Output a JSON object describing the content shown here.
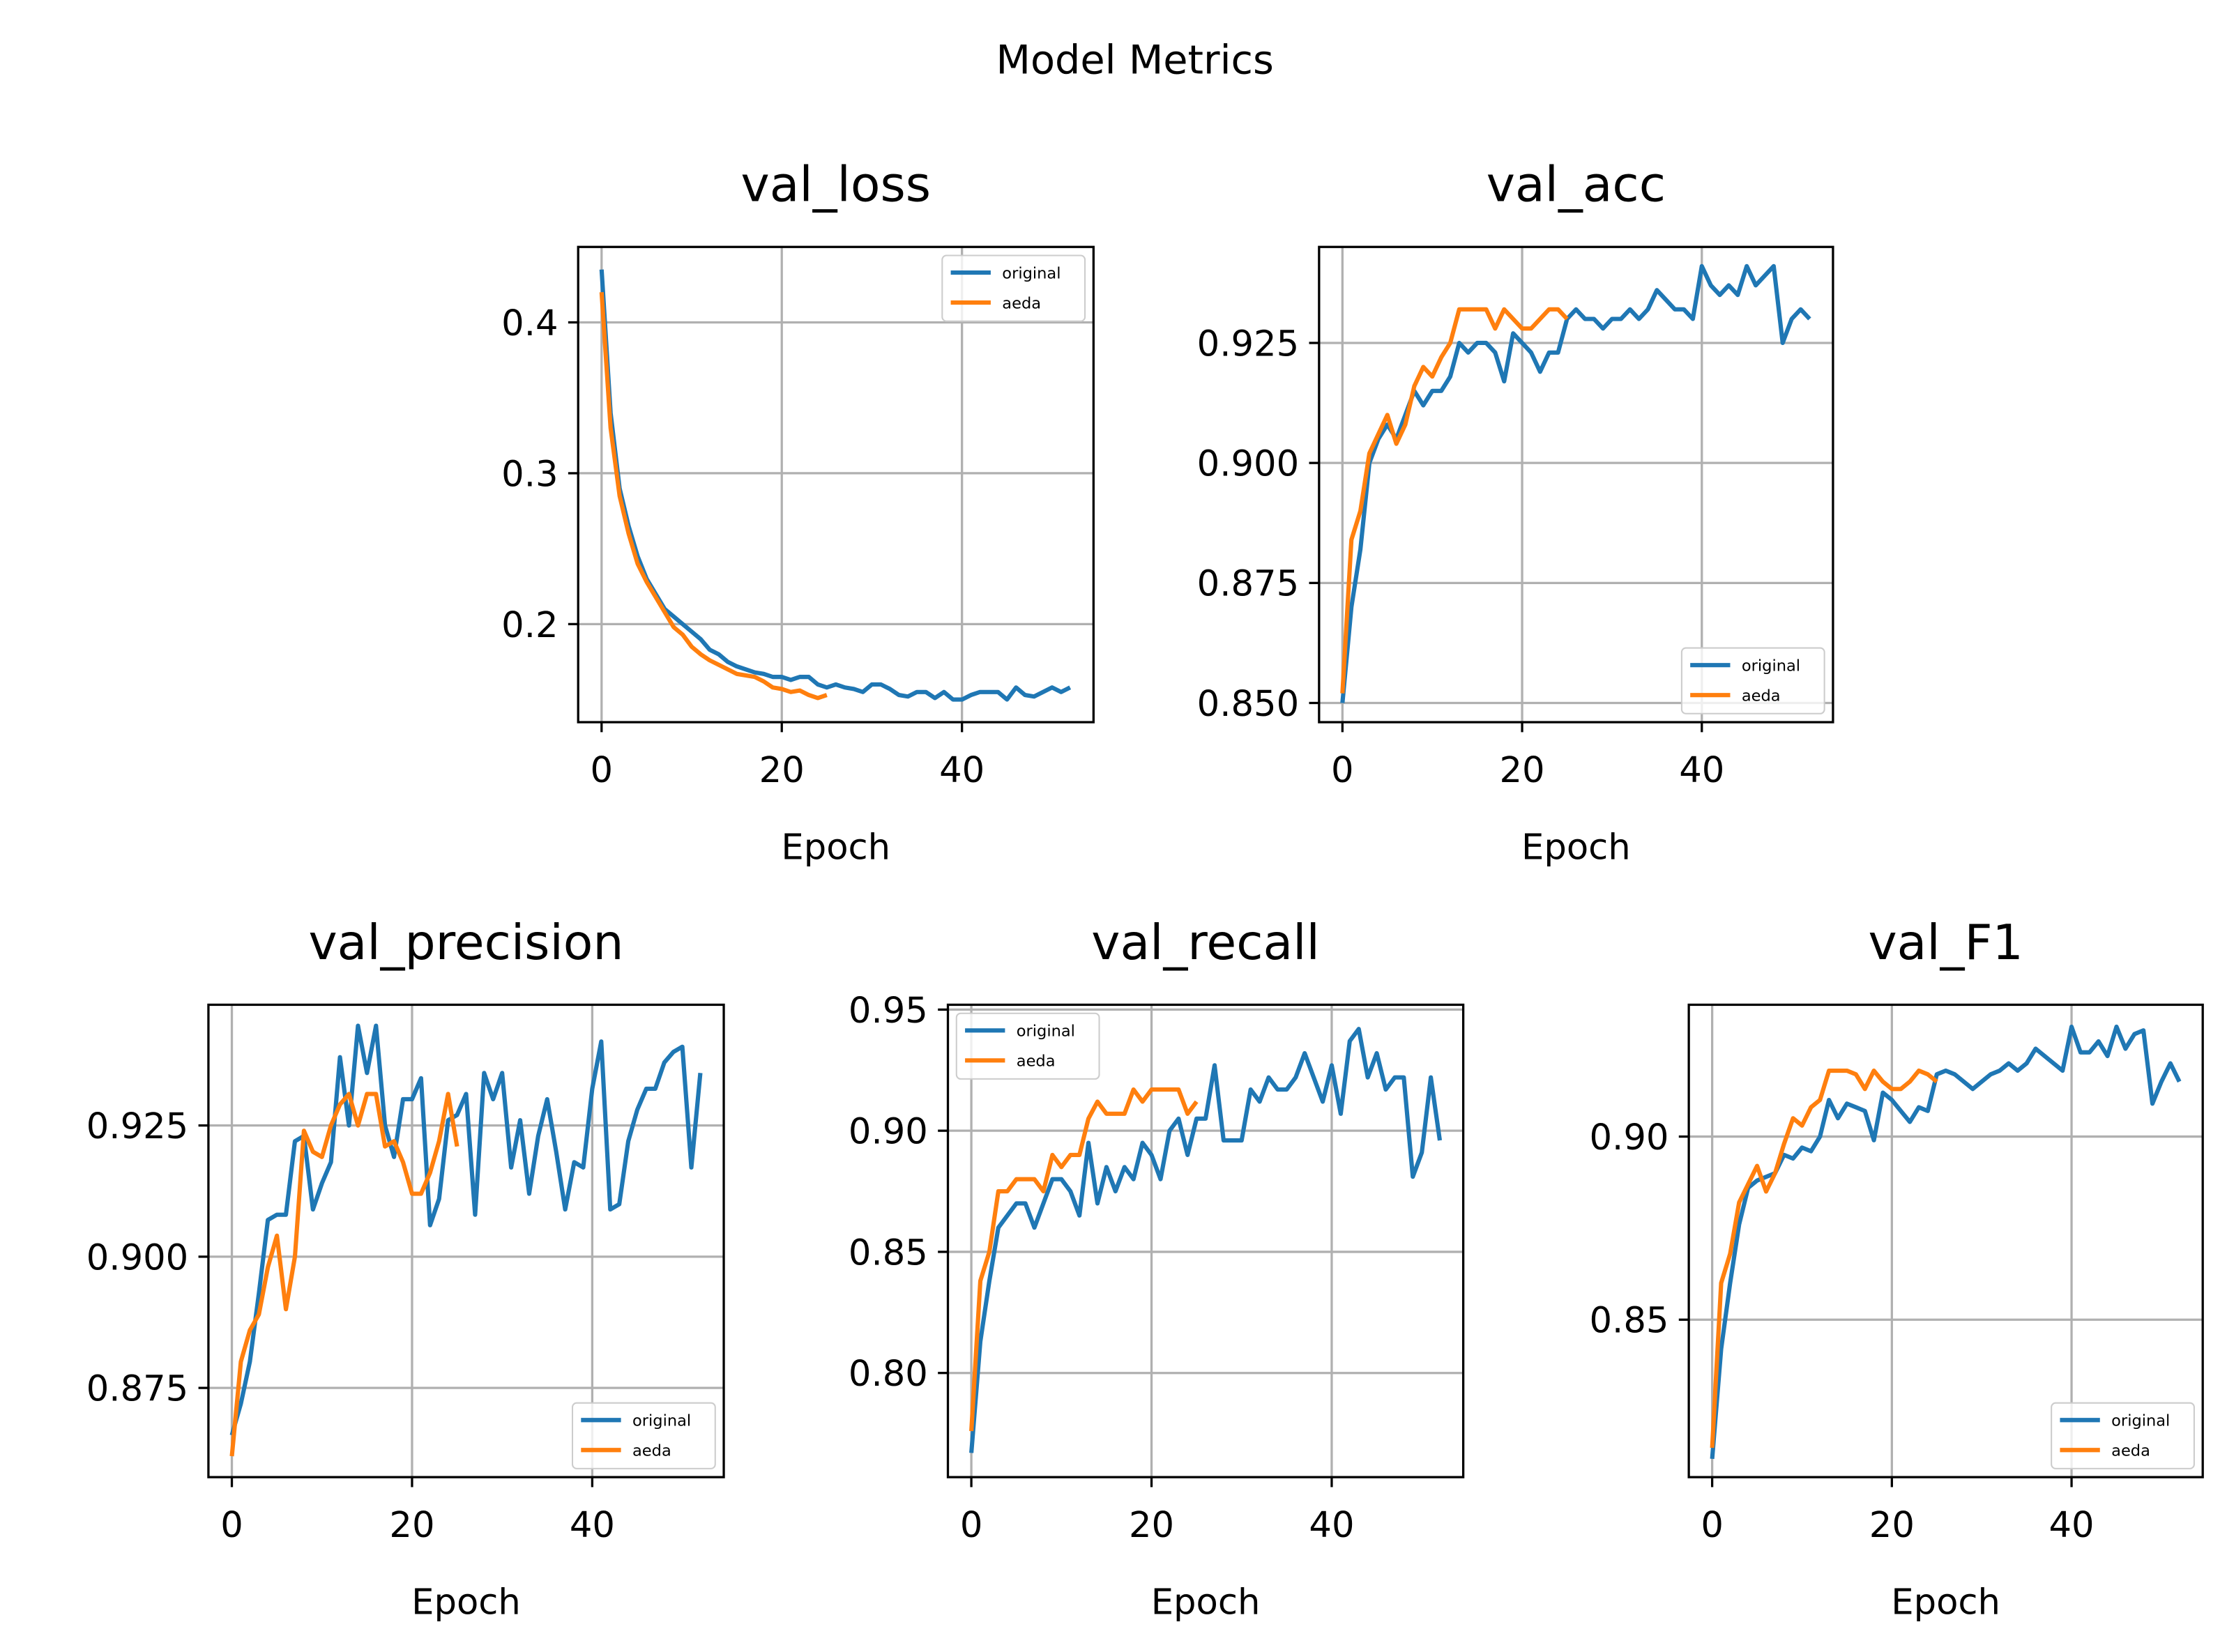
{
  "title": "Model Metrics",
  "chart_data": [
    {
      "type": "line",
      "title": "val_loss",
      "x_label": "Epoch",
      "legend": "upper right",
      "grid": true,
      "xlim": [
        -2.6,
        54.6
      ],
      "xticks": [
        0,
        20,
        40
      ],
      "ylim": [
        0.135,
        0.45
      ],
      "yticks": [
        0.2,
        0.3,
        0.4
      ],
      "series": [
        {
          "name": "original",
          "color": "#1f77b4",
          "x": [
            0,
            1,
            2,
            3,
            4,
            5,
            6,
            7,
            8,
            9,
            10,
            11,
            12,
            13,
            14,
            15,
            16,
            17,
            18,
            19,
            20,
            21,
            22,
            23,
            24,
            25,
            26,
            27,
            28,
            29,
            30,
            31,
            32,
            33,
            34,
            35,
            36,
            37,
            38,
            39,
            40,
            41,
            42,
            43,
            44,
            45,
            46,
            47,
            48,
            49,
            50,
            51,
            52
          ],
          "values": [
            0.435,
            0.34,
            0.29,
            0.265,
            0.245,
            0.23,
            0.22,
            0.21,
            0.205,
            0.2,
            0.195,
            0.19,
            0.183,
            0.18,
            0.175,
            0.172,
            0.17,
            0.168,
            0.167,
            0.165,
            0.165,
            0.163,
            0.165,
            0.165,
            0.16,
            0.158,
            0.16,
            0.158,
            0.157,
            0.155,
            0.16,
            0.16,
            0.157,
            0.153,
            0.152,
            0.155,
            0.155,
            0.151,
            0.155,
            0.15,
            0.15,
            0.153,
            0.155,
            0.155,
            0.155,
            0.15,
            0.158,
            0.153,
            0.152,
            0.155,
            0.158,
            0.155,
            0.158
          ]
        },
        {
          "name": "aeda",
          "color": "#ff7f0e",
          "x": [
            0,
            1,
            2,
            3,
            4,
            5,
            6,
            7,
            8,
            9,
            10,
            11,
            12,
            13,
            14,
            15,
            16,
            17,
            18,
            19,
            20,
            21,
            22,
            23,
            24,
            25
          ],
          "values": [
            0.42,
            0.33,
            0.285,
            0.26,
            0.24,
            0.228,
            0.218,
            0.208,
            0.198,
            0.193,
            0.185,
            0.18,
            0.176,
            0.173,
            0.17,
            0.167,
            0.166,
            0.165,
            0.162,
            0.158,
            0.157,
            0.155,
            0.156,
            0.153,
            0.151,
            0.153
          ]
        }
      ]
    },
    {
      "type": "line",
      "title": "val_acc",
      "x_label": "Epoch",
      "legend": "lower right",
      "grid": true,
      "xlim": [
        -2.6,
        54.6
      ],
      "xticks": [
        0,
        20,
        40
      ],
      "ylim": [
        0.846,
        0.945
      ],
      "yticks": [
        {
          "value": 0.85,
          "label": "0.850"
        },
        {
          "value": 0.875,
          "label": "0.875"
        },
        {
          "value": 0.9,
          "label": "0.900"
        },
        {
          "value": 0.925,
          "label": "0.925"
        }
      ],
      "series": [
        {
          "name": "original",
          "color": "#1f77b4",
          "x": [
            0,
            1,
            2,
            3,
            4,
            5,
            6,
            7,
            8,
            9,
            10,
            11,
            12,
            13,
            14,
            15,
            16,
            17,
            18,
            19,
            20,
            21,
            22,
            23,
            24,
            25,
            26,
            27,
            28,
            29,
            30,
            31,
            32,
            33,
            34,
            35,
            36,
            37,
            38,
            39,
            40,
            41,
            42,
            43,
            44,
            45,
            46,
            47,
            48,
            49,
            50,
            51,
            52
          ],
          "values": [
            0.85,
            0.87,
            0.882,
            0.9,
            0.905,
            0.908,
            0.905,
            0.91,
            0.915,
            0.912,
            0.915,
            0.915,
            0.918,
            0.925,
            0.923,
            0.925,
            0.925,
            0.923,
            0.917,
            0.927,
            0.925,
            0.923,
            0.919,
            0.923,
            0.923,
            0.93,
            0.932,
            0.93,
            0.93,
            0.928,
            0.93,
            0.93,
            0.932,
            0.93,
            0.932,
            0.936,
            0.934,
            0.932,
            0.932,
            0.93,
            0.941,
            0.937,
            0.935,
            0.937,
            0.935,
            0.941,
            0.937,
            0.939,
            0.941,
            0.925,
            0.93,
            0.932,
            0.93
          ]
        },
        {
          "name": "aeda",
          "color": "#ff7f0e",
          "x": [
            0,
            1,
            2,
            3,
            4,
            5,
            6,
            7,
            8,
            9,
            10,
            11,
            12,
            13,
            14,
            15,
            16,
            17,
            18,
            19,
            20,
            21,
            22,
            23,
            24,
            25
          ],
          "values": [
            0.852,
            0.884,
            0.89,
            0.902,
            0.906,
            0.91,
            0.904,
            0.908,
            0.916,
            0.92,
            0.918,
            0.922,
            0.925,
            0.932,
            0.932,
            0.932,
            0.932,
            0.928,
            0.932,
            0.93,
            0.928,
            0.928,
            0.93,
            0.932,
            0.932,
            0.93
          ]
        }
      ]
    },
    {
      "type": "line",
      "title": "val_precision",
      "x_label": "Epoch",
      "legend": "lower right",
      "grid": true,
      "xlim": [
        -2.6,
        54.6
      ],
      "xticks": [
        0,
        20,
        40
      ],
      "ylim": [
        0.858,
        0.948
      ],
      "yticks": [
        {
          "value": 0.875,
          "label": "0.875"
        },
        {
          "value": 0.9,
          "label": "0.900"
        },
        {
          "value": 0.925,
          "label": "0.925"
        }
      ],
      "series": [
        {
          "name": "original",
          "color": "#1f77b4",
          "x": [
            0,
            1,
            2,
            3,
            4,
            5,
            6,
            7,
            8,
            9,
            10,
            11,
            12,
            13,
            14,
            15,
            16,
            17,
            18,
            19,
            20,
            21,
            22,
            23,
            24,
            25,
            26,
            27,
            28,
            29,
            30,
            31,
            32,
            33,
            34,
            35,
            36,
            37,
            38,
            39,
            40,
            41,
            42,
            43,
            44,
            45,
            46,
            47,
            48,
            49,
            50,
            51,
            52
          ],
          "values": [
            0.866,
            0.872,
            0.88,
            0.893,
            0.907,
            0.908,
            0.908,
            0.922,
            0.923,
            0.909,
            0.914,
            0.918,
            0.938,
            0.925,
            0.944,
            0.935,
            0.944,
            0.925,
            0.919,
            0.93,
            0.93,
            0.934,
            0.906,
            0.911,
            0.926,
            0.927,
            0.931,
            0.908,
            0.935,
            0.93,
            0.935,
            0.917,
            0.926,
            0.912,
            0.923,
            0.93,
            0.92,
            0.909,
            0.918,
            0.917,
            0.932,
            0.941,
            0.909,
            0.91,
            0.922,
            0.928,
            0.932,
            0.932,
            0.937,
            0.939,
            0.94,
            0.917,
            0.935
          ]
        },
        {
          "name": "aeda",
          "color": "#ff7f0e",
          "x": [
            0,
            1,
            2,
            3,
            4,
            5,
            6,
            7,
            8,
            9,
            10,
            11,
            12,
            13,
            14,
            15,
            16,
            17,
            18,
            19,
            20,
            21,
            22,
            23,
            24,
            25
          ],
          "values": [
            0.862,
            0.88,
            0.886,
            0.889,
            0.898,
            0.904,
            0.89,
            0.9,
            0.924,
            0.92,
            0.919,
            0.925,
            0.929,
            0.931,
            0.925,
            0.931,
            0.931,
            0.921,
            0.922,
            0.918,
            0.912,
            0.912,
            0.916,
            0.922,
            0.931,
            0.921
          ]
        }
      ]
    },
    {
      "type": "line",
      "title": "val_recall",
      "x_label": "Epoch",
      "legend": "upper left",
      "grid": true,
      "xlim": [
        -2.6,
        54.6
      ],
      "xticks": [
        0,
        20,
        40
      ],
      "ylim": [
        0.757,
        0.952
      ],
      "yticks": [
        {
          "value": 0.8,
          "label": "0.80"
        },
        {
          "value": 0.85,
          "label": "0.85"
        },
        {
          "value": 0.9,
          "label": "0.90"
        },
        {
          "value": 0.95,
          "label": "0.95"
        }
      ],
      "series": [
        {
          "name": "original",
          "color": "#1f77b4",
          "x": [
            0,
            1,
            2,
            3,
            4,
            5,
            6,
            7,
            8,
            9,
            10,
            11,
            12,
            13,
            14,
            15,
            16,
            17,
            18,
            19,
            20,
            21,
            22,
            23,
            24,
            25,
            26,
            27,
            28,
            29,
            30,
            31,
            32,
            33,
            34,
            35,
            36,
            37,
            38,
            39,
            40,
            41,
            42,
            43,
            44,
            45,
            46,
            47,
            48,
            49,
            50,
            51,
            52
          ],
          "values": [
            0.767,
            0.813,
            0.838,
            0.86,
            0.865,
            0.87,
            0.87,
            0.86,
            0.87,
            0.88,
            0.88,
            0.875,
            0.865,
            0.895,
            0.87,
            0.885,
            0.875,
            0.885,
            0.88,
            0.895,
            0.89,
            0.88,
            0.9,
            0.905,
            0.89,
            0.905,
            0.905,
            0.927,
            0.896,
            0.896,
            0.896,
            0.917,
            0.912,
            0.922,
            0.917,
            0.917,
            0.922,
            0.932,
            0.922,
            0.912,
            0.927,
            0.907,
            0.937,
            0.942,
            0.922,
            0.932,
            0.917,
            0.922,
            0.922,
            0.881,
            0.891,
            0.922,
            0.896
          ]
        },
        {
          "name": "aeda",
          "color": "#ff7f0e",
          "x": [
            0,
            1,
            2,
            3,
            4,
            5,
            6,
            7,
            8,
            9,
            10,
            11,
            12,
            13,
            14,
            15,
            16,
            17,
            18,
            19,
            20,
            21,
            22,
            23,
            24,
            25
          ],
          "values": [
            0.776,
            0.838,
            0.85,
            0.875,
            0.875,
            0.88,
            0.88,
            0.88,
            0.875,
            0.89,
            0.885,
            0.89,
            0.89,
            0.905,
            0.912,
            0.907,
            0.907,
            0.907,
            0.917,
            0.912,
            0.917,
            0.917,
            0.917,
            0.917,
            0.907,
            0.912
          ]
        }
      ]
    },
    {
      "type": "line",
      "title": "val_F1",
      "x_label": "Epoch",
      "legend": "lower right",
      "grid": true,
      "xlim": [
        -2.6,
        54.6
      ],
      "xticks": [
        0,
        20,
        40
      ],
      "ylim": [
        0.807,
        0.936
      ],
      "yticks": [
        {
          "value": 0.85,
          "label": "0.85"
        },
        {
          "value": 0.9,
          "label": "0.90"
        }
      ],
      "series": [
        {
          "name": "original",
          "color": "#1f77b4",
          "x": [
            0,
            1,
            2,
            3,
            4,
            5,
            6,
            7,
            8,
            9,
            10,
            11,
            12,
            13,
            14,
            15,
            16,
            17,
            18,
            19,
            20,
            21,
            22,
            23,
            24,
            25,
            26,
            27,
            28,
            29,
            30,
            31,
            32,
            33,
            34,
            35,
            36,
            37,
            38,
            39,
            40,
            41,
            42,
            43,
            44,
            45,
            46,
            47,
            48,
            49,
            50,
            51,
            52
          ],
          "values": [
            0.812,
            0.842,
            0.86,
            0.876,
            0.886,
            0.888,
            0.889,
            0.89,
            0.895,
            0.894,
            0.897,
            0.896,
            0.9,
            0.91,
            0.905,
            0.909,
            0.908,
            0.907,
            0.899,
            0.912,
            0.91,
            0.907,
            0.904,
            0.908,
            0.907,
            0.917,
            0.918,
            0.917,
            0.915,
            0.913,
            0.915,
            0.917,
            0.918,
            0.92,
            0.918,
            0.92,
            0.924,
            0.922,
            0.92,
            0.918,
            0.93,
            0.923,
            0.923,
            0.926,
            0.922,
            0.93,
            0.924,
            0.928,
            0.929,
            0.909,
            0.915,
            0.92,
            0.915
          ]
        },
        {
          "name": "aeda",
          "color": "#ff7f0e",
          "x": [
            0,
            1,
            2,
            3,
            4,
            5,
            6,
            7,
            8,
            9,
            10,
            11,
            12,
            13,
            14,
            15,
            16,
            17,
            18,
            19,
            20,
            21,
            22,
            23,
            24,
            25
          ],
          "values": [
            0.815,
            0.86,
            0.868,
            0.882,
            0.887,
            0.892,
            0.885,
            0.89,
            0.898,
            0.905,
            0.903,
            0.908,
            0.91,
            0.918,
            0.918,
            0.918,
            0.917,
            0.913,
            0.918,
            0.915,
            0.913,
            0.913,
            0.915,
            0.918,
            0.917,
            0.915
          ]
        }
      ]
    }
  ]
}
